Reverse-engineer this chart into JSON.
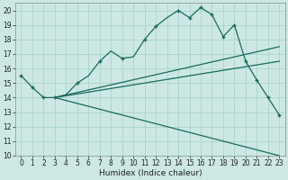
{
  "xlabel": "Humidex (Indice chaleur)",
  "bg_color": "#cde8e4",
  "grid_color": "#a8d4cd",
  "line_color": "#1a6b5a",
  "xlim": [
    -0.5,
    23.5
  ],
  "ylim": [
    10,
    20.5
  ],
  "xtick_labels": [
    "0",
    "1",
    "2",
    "3",
    "4",
    "5",
    "6",
    "7",
    "8",
    "9",
    "10",
    "11",
    "12",
    "13",
    "14",
    "15",
    "16",
    "17",
    "18",
    "19",
    "20",
    "21",
    "22",
    "23"
  ],
  "xtick_vals": [
    0,
    1,
    2,
    3,
    4,
    5,
    6,
    7,
    8,
    9,
    10,
    11,
    12,
    13,
    14,
    15,
    16,
    17,
    18,
    19,
    20,
    21,
    22,
    23
  ],
  "ytick_vals": [
    10,
    11,
    12,
    13,
    14,
    15,
    16,
    17,
    18,
    19,
    20
  ],
  "curve_x": [
    0,
    1,
    2,
    3,
    4,
    5,
    6,
    7,
    8,
    9,
    10,
    11,
    12,
    13,
    14,
    15,
    16,
    17,
    18,
    19,
    20,
    21,
    22,
    23
  ],
  "curve_y": [
    15.5,
    14.7,
    14.0,
    14.0,
    14.2,
    15.0,
    15.5,
    16.5,
    17.2,
    16.7,
    16.8,
    18.0,
    18.9,
    19.5,
    20.0,
    19.5,
    20.2,
    19.7,
    18.2,
    19.0,
    16.5,
    15.2,
    14.0,
    12.8
  ],
  "marker_x": [
    0,
    1,
    2,
    3,
    5,
    7,
    9,
    11,
    12,
    14,
    15,
    16,
    17,
    18,
    19,
    20,
    21,
    22,
    23
  ],
  "marker_y": [
    15.5,
    14.7,
    14.0,
    14.0,
    15.0,
    16.5,
    16.7,
    18.0,
    18.9,
    20.0,
    19.5,
    20.2,
    19.7,
    18.2,
    19.0,
    16.5,
    15.2,
    14.0,
    12.8
  ],
  "line1_x": [
    3,
    23
  ],
  "line1_y": [
    14.0,
    17.5
  ],
  "line2_x": [
    3,
    23
  ],
  "line2_y": [
    14.0,
    16.5
  ],
  "line3_x": [
    3,
    23
  ],
  "line3_y": [
    14.0,
    10.0
  ],
  "xlabel_fontsize": 6.5,
  "tick_fontsize": 5.5
}
